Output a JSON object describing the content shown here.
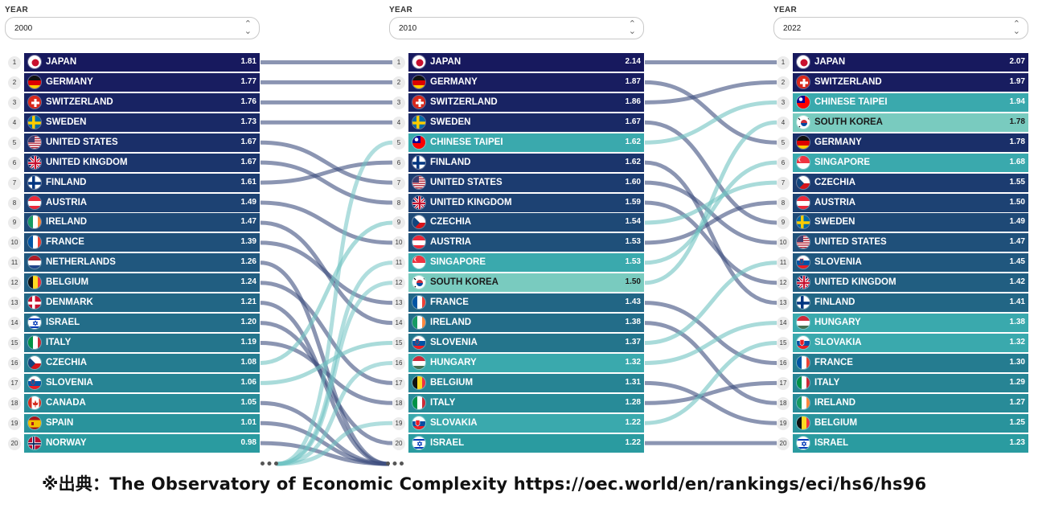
{
  "columns": [
    {
      "year_label": "YEAR",
      "year": "2000",
      "rows": [
        {
          "rank": "1",
          "country": "JAPAN",
          "value": "1.81",
          "flag": "jp"
        },
        {
          "rank": "2",
          "country": "GERMANY",
          "value": "1.77",
          "flag": "de"
        },
        {
          "rank": "3",
          "country": "SWITZERLAND",
          "value": "1.76",
          "flag": "ch"
        },
        {
          "rank": "4",
          "country": "SWEDEN",
          "value": "1.73",
          "flag": "se"
        },
        {
          "rank": "5",
          "country": "UNITED STATES",
          "value": "1.67",
          "flag": "us"
        },
        {
          "rank": "6",
          "country": "UNITED KINGDOM",
          "value": "1.67",
          "flag": "gb"
        },
        {
          "rank": "7",
          "country": "FINLAND",
          "value": "1.61",
          "flag": "fi"
        },
        {
          "rank": "8",
          "country": "AUSTRIA",
          "value": "1.49",
          "flag": "at"
        },
        {
          "rank": "9",
          "country": "IRELAND",
          "value": "1.47",
          "flag": "ie"
        },
        {
          "rank": "10",
          "country": "FRANCE",
          "value": "1.39",
          "flag": "fr"
        },
        {
          "rank": "11",
          "country": "NETHERLANDS",
          "value": "1.26",
          "flag": "nl"
        },
        {
          "rank": "12",
          "country": "BELGIUM",
          "value": "1.24",
          "flag": "be"
        },
        {
          "rank": "13",
          "country": "DENMARK",
          "value": "1.21",
          "flag": "dk"
        },
        {
          "rank": "14",
          "country": "ISRAEL",
          "value": "1.20",
          "flag": "il"
        },
        {
          "rank": "15",
          "country": "ITALY",
          "value": "1.19",
          "flag": "it"
        },
        {
          "rank": "16",
          "country": "CZECHIA",
          "value": "1.08",
          "flag": "cz"
        },
        {
          "rank": "17",
          "country": "SLOVENIA",
          "value": "1.06",
          "flag": "si"
        },
        {
          "rank": "18",
          "country": "CANADA",
          "value": "1.05",
          "flag": "ca"
        },
        {
          "rank": "19",
          "country": "SPAIN",
          "value": "1.01",
          "flag": "es"
        },
        {
          "rank": "20",
          "country": "NORWAY",
          "value": "0.98",
          "flag": "no"
        }
      ]
    },
    {
      "year_label": "YEAR",
      "year": "2010",
      "rows": [
        {
          "rank": "1",
          "country": "JAPAN",
          "value": "2.14",
          "flag": "jp"
        },
        {
          "rank": "2",
          "country": "GERMANY",
          "value": "1.87",
          "flag": "de"
        },
        {
          "rank": "3",
          "country": "SWITZERLAND",
          "value": "1.86",
          "flag": "ch"
        },
        {
          "rank": "4",
          "country": "SWEDEN",
          "value": "1.67",
          "flag": "se"
        },
        {
          "rank": "5",
          "country": "CHINESE TAIPEI",
          "value": "1.62",
          "flag": "tw"
        },
        {
          "rank": "6",
          "country": "FINLAND",
          "value": "1.62",
          "flag": "fi"
        },
        {
          "rank": "7",
          "country": "UNITED STATES",
          "value": "1.60",
          "flag": "us"
        },
        {
          "rank": "8",
          "country": "UNITED KINGDOM",
          "value": "1.59",
          "flag": "gb"
        },
        {
          "rank": "9",
          "country": "CZECHIA",
          "value": "1.54",
          "flag": "cz"
        },
        {
          "rank": "10",
          "country": "AUSTRIA",
          "value": "1.53",
          "flag": "at"
        },
        {
          "rank": "11",
          "country": "SINGAPORE",
          "value": "1.53",
          "flag": "sg"
        },
        {
          "rank": "12",
          "country": "SOUTH KOREA",
          "value": "1.50",
          "flag": "kr"
        },
        {
          "rank": "13",
          "country": "FRANCE",
          "value": "1.43",
          "flag": "fr"
        },
        {
          "rank": "14",
          "country": "IRELAND",
          "value": "1.38",
          "flag": "ie"
        },
        {
          "rank": "15",
          "country": "SLOVENIA",
          "value": "1.37",
          "flag": "si"
        },
        {
          "rank": "16",
          "country": "HUNGARY",
          "value": "1.32",
          "flag": "hu"
        },
        {
          "rank": "17",
          "country": "BELGIUM",
          "value": "1.31",
          "flag": "be"
        },
        {
          "rank": "18",
          "country": "ITALY",
          "value": "1.28",
          "flag": "it"
        },
        {
          "rank": "19",
          "country": "SLOVAKIA",
          "value": "1.22",
          "flag": "sk"
        },
        {
          "rank": "20",
          "country": "ISRAEL",
          "value": "1.22",
          "flag": "il"
        }
      ]
    },
    {
      "year_label": "YEAR",
      "year": "2022",
      "rows": [
        {
          "rank": "1",
          "country": "JAPAN",
          "value": "2.07",
          "flag": "jp"
        },
        {
          "rank": "2",
          "country": "SWITZERLAND",
          "value": "1.97",
          "flag": "ch"
        },
        {
          "rank": "3",
          "country": "CHINESE TAIPEI",
          "value": "1.94",
          "flag": "tw"
        },
        {
          "rank": "4",
          "country": "SOUTH KOREA",
          "value": "1.78",
          "flag": "kr"
        },
        {
          "rank": "5",
          "country": "GERMANY",
          "value": "1.78",
          "flag": "de"
        },
        {
          "rank": "6",
          "country": "SINGAPORE",
          "value": "1.68",
          "flag": "sg"
        },
        {
          "rank": "7",
          "country": "CZECHIA",
          "value": "1.55",
          "flag": "cz"
        },
        {
          "rank": "8",
          "country": "AUSTRIA",
          "value": "1.50",
          "flag": "at"
        },
        {
          "rank": "9",
          "country": "SWEDEN",
          "value": "1.49",
          "flag": "se"
        },
        {
          "rank": "10",
          "country": "UNITED STATES",
          "value": "1.47",
          "flag": "us"
        },
        {
          "rank": "11",
          "country": "SLOVENIA",
          "value": "1.45",
          "flag": "si"
        },
        {
          "rank": "12",
          "country": "UNITED KINGDOM",
          "value": "1.42",
          "flag": "gb"
        },
        {
          "rank": "13",
          "country": "FINLAND",
          "value": "1.41",
          "flag": "fi"
        },
        {
          "rank": "14",
          "country": "HUNGARY",
          "value": "1.38",
          "flag": "hu"
        },
        {
          "rank": "15",
          "country": "SLOVAKIA",
          "value": "1.32",
          "flag": "sk"
        },
        {
          "rank": "16",
          "country": "FRANCE",
          "value": "1.30",
          "flag": "fr"
        },
        {
          "rank": "17",
          "country": "ITALY",
          "value": "1.29",
          "flag": "it"
        },
        {
          "rank": "18",
          "country": "IRELAND",
          "value": "1.27",
          "flag": "ie"
        },
        {
          "rank": "19",
          "country": "BELGIUM",
          "value": "1.25",
          "flag": "be"
        },
        {
          "rank": "20",
          "country": "ISRAEL",
          "value": "1.23",
          "flag": "il"
        }
      ]
    }
  ],
  "source_note": "※出典：The Observatory of Economic Complexity https://oec.world/en/rankings/eci/hs6/hs96",
  "colors": {
    "rank_1_bar": "#17195e",
    "rank_20_bar": "#2a9ba0",
    "light_teal_bar": "#79cbbf",
    "link_dark": "#3d4f7f",
    "link_teal": "#6fc3c2"
  },
  "chart_data": {
    "type": "table",
    "title": "",
    "columns": [
      "2000",
      "2010",
      "2022"
    ],
    "series": [
      {
        "year": "2000",
        "countries": [
          "JAPAN",
          "GERMANY",
          "SWITZERLAND",
          "SWEDEN",
          "UNITED STATES",
          "UNITED KINGDOM",
          "FINLAND",
          "AUSTRIA",
          "IRELAND",
          "FRANCE",
          "NETHERLANDS",
          "BELGIUM",
          "DENMARK",
          "ISRAEL",
          "ITALY",
          "CZECHIA",
          "SLOVENIA",
          "CANADA",
          "SPAIN",
          "NORWAY"
        ],
        "values": [
          1.81,
          1.77,
          1.76,
          1.73,
          1.67,
          1.67,
          1.61,
          1.49,
          1.47,
          1.39,
          1.26,
          1.24,
          1.21,
          1.2,
          1.19,
          1.08,
          1.06,
          1.05,
          1.01,
          0.98
        ]
      },
      {
        "year": "2010",
        "countries": [
          "JAPAN",
          "GERMANY",
          "SWITZERLAND",
          "SWEDEN",
          "CHINESE TAIPEI",
          "FINLAND",
          "UNITED STATES",
          "UNITED KINGDOM",
          "CZECHIA",
          "AUSTRIA",
          "SINGAPORE",
          "SOUTH KOREA",
          "FRANCE",
          "IRELAND",
          "SLOVENIA",
          "HUNGARY",
          "BELGIUM",
          "ITALY",
          "SLOVAKIA",
          "ISRAEL"
        ],
        "values": [
          2.14,
          1.87,
          1.86,
          1.67,
          1.62,
          1.62,
          1.6,
          1.59,
          1.54,
          1.53,
          1.53,
          1.5,
          1.43,
          1.38,
          1.37,
          1.32,
          1.31,
          1.28,
          1.22,
          1.22
        ]
      },
      {
        "year": "2022",
        "countries": [
          "JAPAN",
          "SWITZERLAND",
          "CHINESE TAIPEI",
          "SOUTH KOREA",
          "GERMANY",
          "SINGAPORE",
          "CZECHIA",
          "AUSTRIA",
          "SWEDEN",
          "UNITED STATES",
          "SLOVENIA",
          "UNITED KINGDOM",
          "FINLAND",
          "HUNGARY",
          "SLOVAKIA",
          "FRANCE",
          "ITALY",
          "IRELAND",
          "BELGIUM",
          "ISRAEL"
        ],
        "values": [
          2.07,
          1.97,
          1.94,
          1.78,
          1.78,
          1.68,
          1.55,
          1.5,
          1.49,
          1.47,
          1.45,
          1.42,
          1.41,
          1.38,
          1.32,
          1.3,
          1.29,
          1.27,
          1.25,
          1.23
        ]
      }
    ]
  }
}
